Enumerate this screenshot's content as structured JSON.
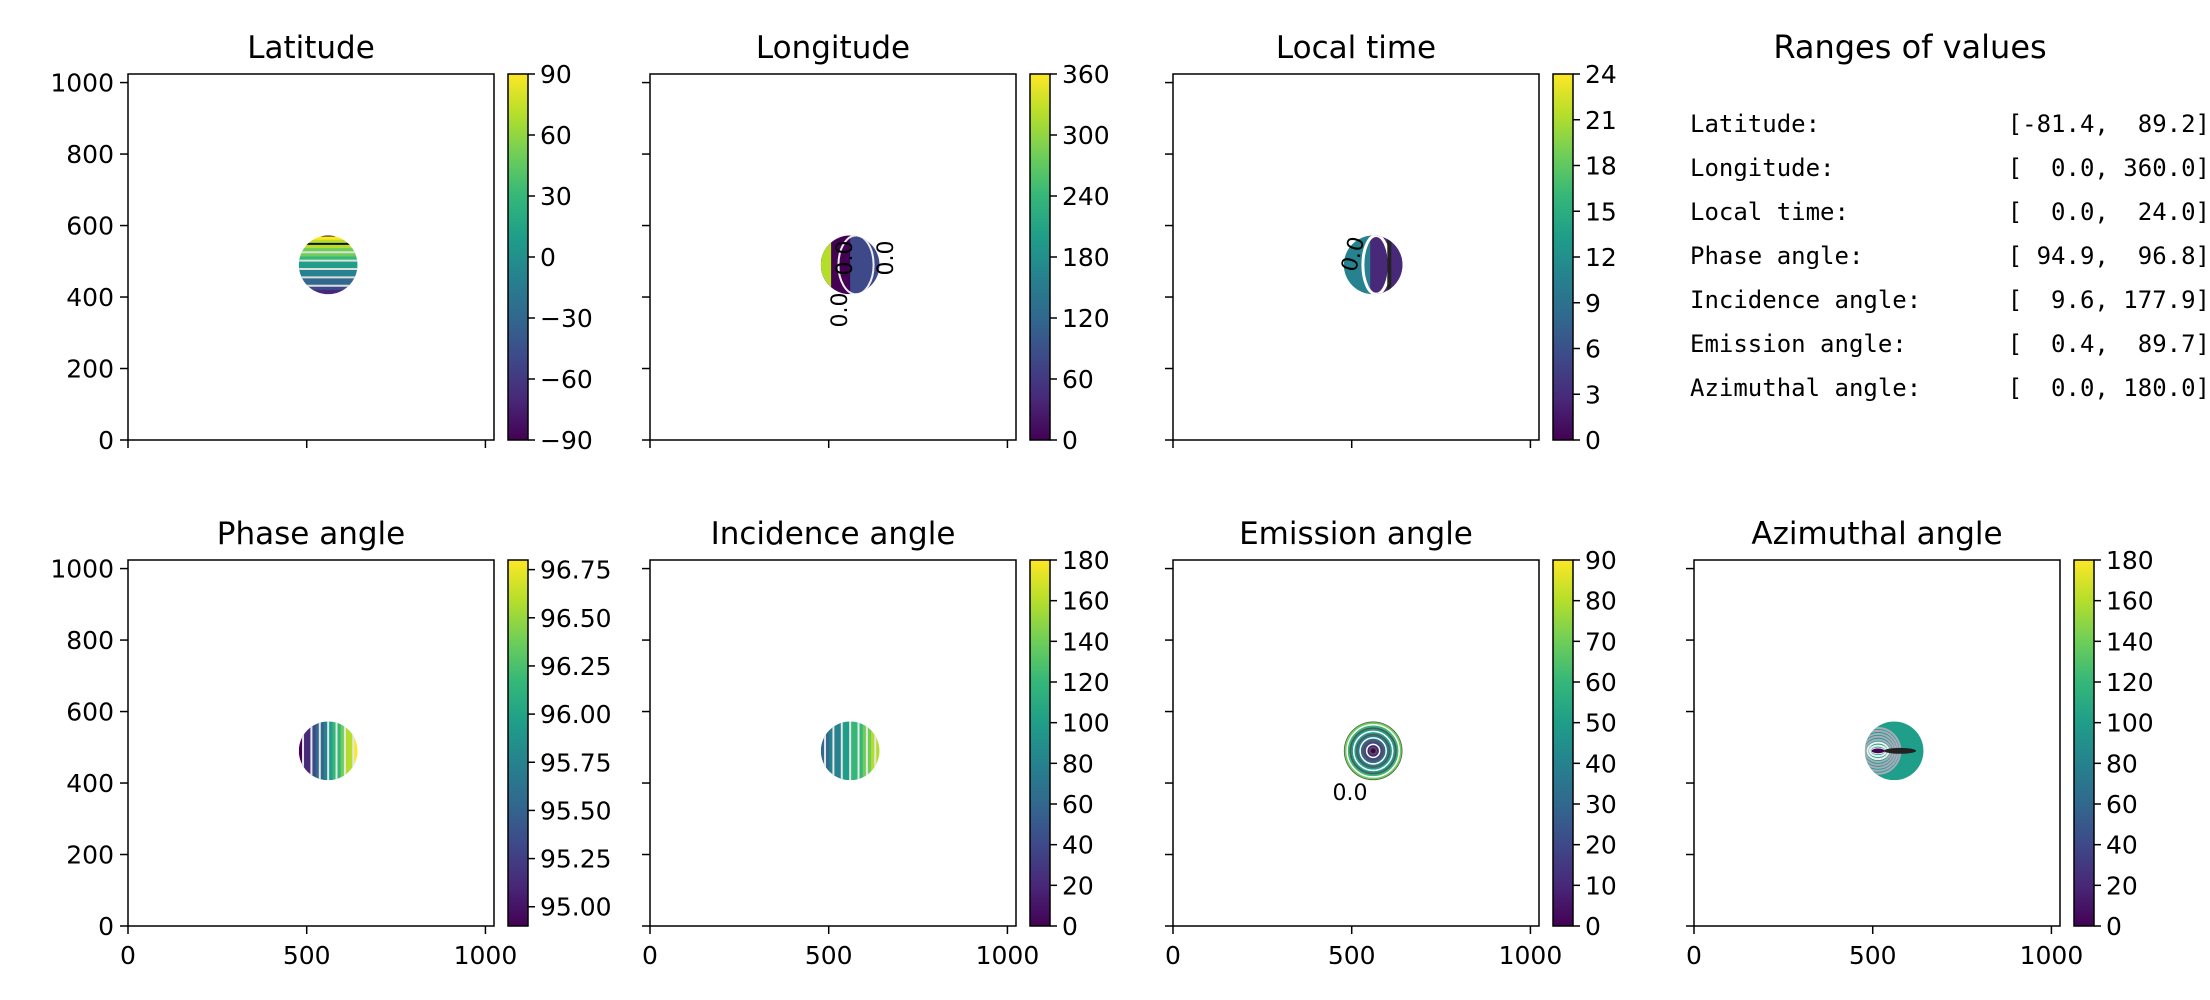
{
  "chart_data": [
    {
      "type": "heatmap",
      "title": "Latitude",
      "xlim": [
        0,
        1024
      ],
      "ylim": [
        0,
        1024
      ],
      "xticks": [
        0,
        500,
        1000
      ],
      "yticks": [
        0,
        200,
        400,
        600,
        800,
        1000
      ],
      "xtick_labels_shown": false,
      "ytick_labels_shown": true,
      "colorbar": {
        "min": -90,
        "max": 90,
        "ticks": [
          "90",
          "60",
          "30",
          "0",
          "−30",
          "−60",
          "−90"
        ]
      },
      "disk": {
        "center": [
          560,
          490
        ],
        "radius": 82,
        "pattern": "horizontal-bands"
      }
    },
    {
      "type": "heatmap",
      "title": "Longitude",
      "xlim": [
        0,
        1024
      ],
      "ylim": [
        0,
        1024
      ],
      "xticks": [
        0,
        500,
        1000
      ],
      "yticks": [
        0,
        200,
        400,
        600,
        800,
        1000
      ],
      "xtick_labels_shown": false,
      "ytick_labels_shown": false,
      "colorbar": {
        "min": 0,
        "max": 360,
        "ticks": [
          "360",
          "300",
          "240",
          "180",
          "120",
          "60",
          "0"
        ]
      },
      "disk": {
        "center": [
          560,
          490
        ],
        "radius": 82,
        "pattern": "longitude"
      }
    },
    {
      "type": "heatmap",
      "title": "Local time",
      "xlim": [
        0,
        1024
      ],
      "ylim": [
        0,
        1024
      ],
      "xticks": [
        0,
        500,
        1000
      ],
      "yticks": [
        0,
        200,
        400,
        600,
        800,
        1000
      ],
      "xtick_labels_shown": false,
      "ytick_labels_shown": false,
      "colorbar": {
        "min": 0,
        "max": 24,
        "ticks": [
          "24",
          "21",
          "18",
          "15",
          "12",
          "9",
          "6",
          "3",
          "0"
        ]
      },
      "disk": {
        "center": [
          560,
          490
        ],
        "radius": 82,
        "pattern": "localtime"
      }
    },
    {
      "type": "heatmap",
      "title": "Phase angle",
      "xlim": [
        0,
        1024
      ],
      "ylim": [
        0,
        1024
      ],
      "xticks": [
        0,
        500,
        1000
      ],
      "yticks": [
        0,
        200,
        400,
        600,
        800,
        1000
      ],
      "xtick_labels_shown": true,
      "ytick_labels_shown": true,
      "colorbar": {
        "min": 94.9,
        "max": 96.8,
        "ticks": [
          "96.75",
          "96.50",
          "96.25",
          "96.00",
          "95.75",
          "95.50",
          "95.25",
          "95.00"
        ],
        "tick_values": [
          96.75,
          96.5,
          96.25,
          96.0,
          95.75,
          95.5,
          95.25,
          95.0
        ]
      },
      "disk": {
        "center": [
          560,
          490
        ],
        "radius": 82,
        "pattern": "vertical-bands"
      }
    },
    {
      "type": "heatmap",
      "title": "Incidence angle",
      "xlim": [
        0,
        1024
      ],
      "ylim": [
        0,
        1024
      ],
      "xticks": [
        0,
        500,
        1000
      ],
      "yticks": [
        0,
        200,
        400,
        600,
        800,
        1000
      ],
      "xtick_labels_shown": true,
      "ytick_labels_shown": false,
      "colorbar": {
        "min": 0,
        "max": 180,
        "ticks": [
          "180",
          "160",
          "140",
          "120",
          "100",
          "80",
          "60",
          "40",
          "20",
          "0"
        ]
      },
      "disk": {
        "center": [
          560,
          490
        ],
        "radius": 82,
        "pattern": "vertical-bands-incidence"
      }
    },
    {
      "type": "heatmap",
      "title": "Emission angle",
      "xlim": [
        0,
        1024
      ],
      "ylim": [
        0,
        1024
      ],
      "xticks": [
        0,
        500,
        1000
      ],
      "yticks": [
        0,
        200,
        400,
        600,
        800,
        1000
      ],
      "xtick_labels_shown": true,
      "ytick_labels_shown": false,
      "colorbar": {
        "min": 0,
        "max": 90,
        "ticks": [
          "90",
          "80",
          "70",
          "60",
          "50",
          "40",
          "30",
          "20",
          "10",
          "0"
        ]
      },
      "disk": {
        "center": [
          560,
          490
        ],
        "radius": 82,
        "pattern": "concentric"
      }
    },
    {
      "type": "heatmap",
      "title": "Azimuthal angle",
      "xlim": [
        0,
        1024
      ],
      "ylim": [
        0,
        1024
      ],
      "xticks": [
        0,
        500,
        1000
      ],
      "yticks": [
        0,
        200,
        400,
        600,
        800,
        1000
      ],
      "xtick_labels_shown": true,
      "ytick_labels_shown": false,
      "colorbar": {
        "min": 0,
        "max": 180,
        "ticks": [
          "180",
          "160",
          "140",
          "120",
          "100",
          "80",
          "60",
          "40",
          "20",
          "0"
        ]
      },
      "disk": {
        "center": [
          560,
          490
        ],
        "radius": 82,
        "pattern": "azimuthal"
      }
    }
  ],
  "ranges": {
    "title": "Ranges of values",
    "rows": [
      {
        "label": "Latitude:",
        "value": "[-81.4,  89.2]"
      },
      {
        "label": "Longitude:",
        "value": "[  0.0, 360.0]"
      },
      {
        "label": "Local time:",
        "value": "[  0.0,  24.0]"
      },
      {
        "label": "Phase angle:",
        "value": "[ 94.9,  96.8]"
      },
      {
        "label": "Incidence angle:",
        "value": "[  9.6, 177.9]"
      },
      {
        "label": "Emission angle:",
        "value": "[  0.4,  89.7]"
      },
      {
        "label": "Azimuthal angle:",
        "value": "[  0.0, 180.0]"
      }
    ]
  },
  "colormap": [
    "#440154",
    "#482878",
    "#3e4989",
    "#31688e",
    "#26828e",
    "#1f9e89",
    "#35b779",
    "#6ece58",
    "#b5de2b",
    "#fde725"
  ],
  "contour_label_texts": [
    "0.0",
    "0.0",
    "0.0",
    "0.0",
    "0.0"
  ]
}
